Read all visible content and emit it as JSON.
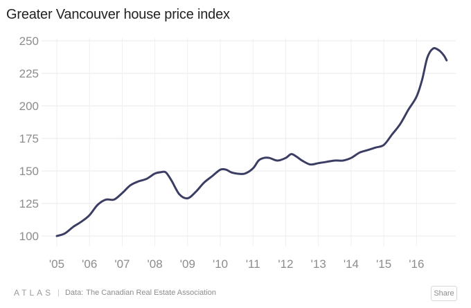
{
  "chart_data": {
    "type": "line",
    "title": "Greater Vancouver house price index",
    "xlabel": "",
    "ylabel": "",
    "xlim": [
      2005,
      2017.2
    ],
    "ylim": [
      100,
      250
    ],
    "yticks": [
      "100",
      "125",
      "150",
      "175",
      "200",
      "225",
      "250"
    ],
    "xticks": [
      "'05",
      "'06",
      "'07",
      "'08",
      "'09",
      "'10",
      "'11",
      "'12",
      "'13",
      "'14",
      "'15",
      "'16"
    ],
    "grid": true,
    "series": [
      {
        "color": "#3b3d63",
        "x": [
          2005.0,
          2005.25,
          2005.5,
          2005.75,
          2006.0,
          2006.25,
          2006.5,
          2006.75,
          2007.0,
          2007.25,
          2007.5,
          2007.75,
          2008.0,
          2008.17,
          2008.33,
          2008.5,
          2008.75,
          2009.0,
          2009.25,
          2009.5,
          2009.75,
          2010.0,
          2010.17,
          2010.33,
          2010.5,
          2010.75,
          2011.0,
          2011.17,
          2011.33,
          2011.5,
          2011.75,
          2012.0,
          2012.17,
          2012.33,
          2012.5,
          2012.75,
          2013.0,
          2013.25,
          2013.5,
          2013.75,
          2014.0,
          2014.25,
          2014.5,
          2014.75,
          2015.0,
          2015.25,
          2015.5,
          2015.75,
          2016.0,
          2016.17,
          2016.33,
          2016.5,
          2016.67,
          2016.83,
          2016.92
        ],
        "y": [
          100,
          102,
          107,
          111,
          116,
          124,
          128,
          128,
          133,
          139,
          142,
          144,
          148,
          149,
          149,
          143,
          132,
          129,
          134,
          141,
          146,
          151,
          151,
          149,
          148,
          148,
          152,
          158,
          160,
          160,
          158,
          160,
          163,
          161,
          158,
          155,
          156,
          157,
          158,
          158,
          160,
          164,
          166,
          168,
          170,
          178,
          186,
          197,
          207,
          220,
          237,
          244,
          243,
          239,
          235
        ]
      }
    ]
  },
  "footer": {
    "logo": "ATLAS",
    "separator": "|",
    "source_label": "Data:",
    "source": "The Canadian Real Estate Association",
    "share_label": "Share"
  }
}
